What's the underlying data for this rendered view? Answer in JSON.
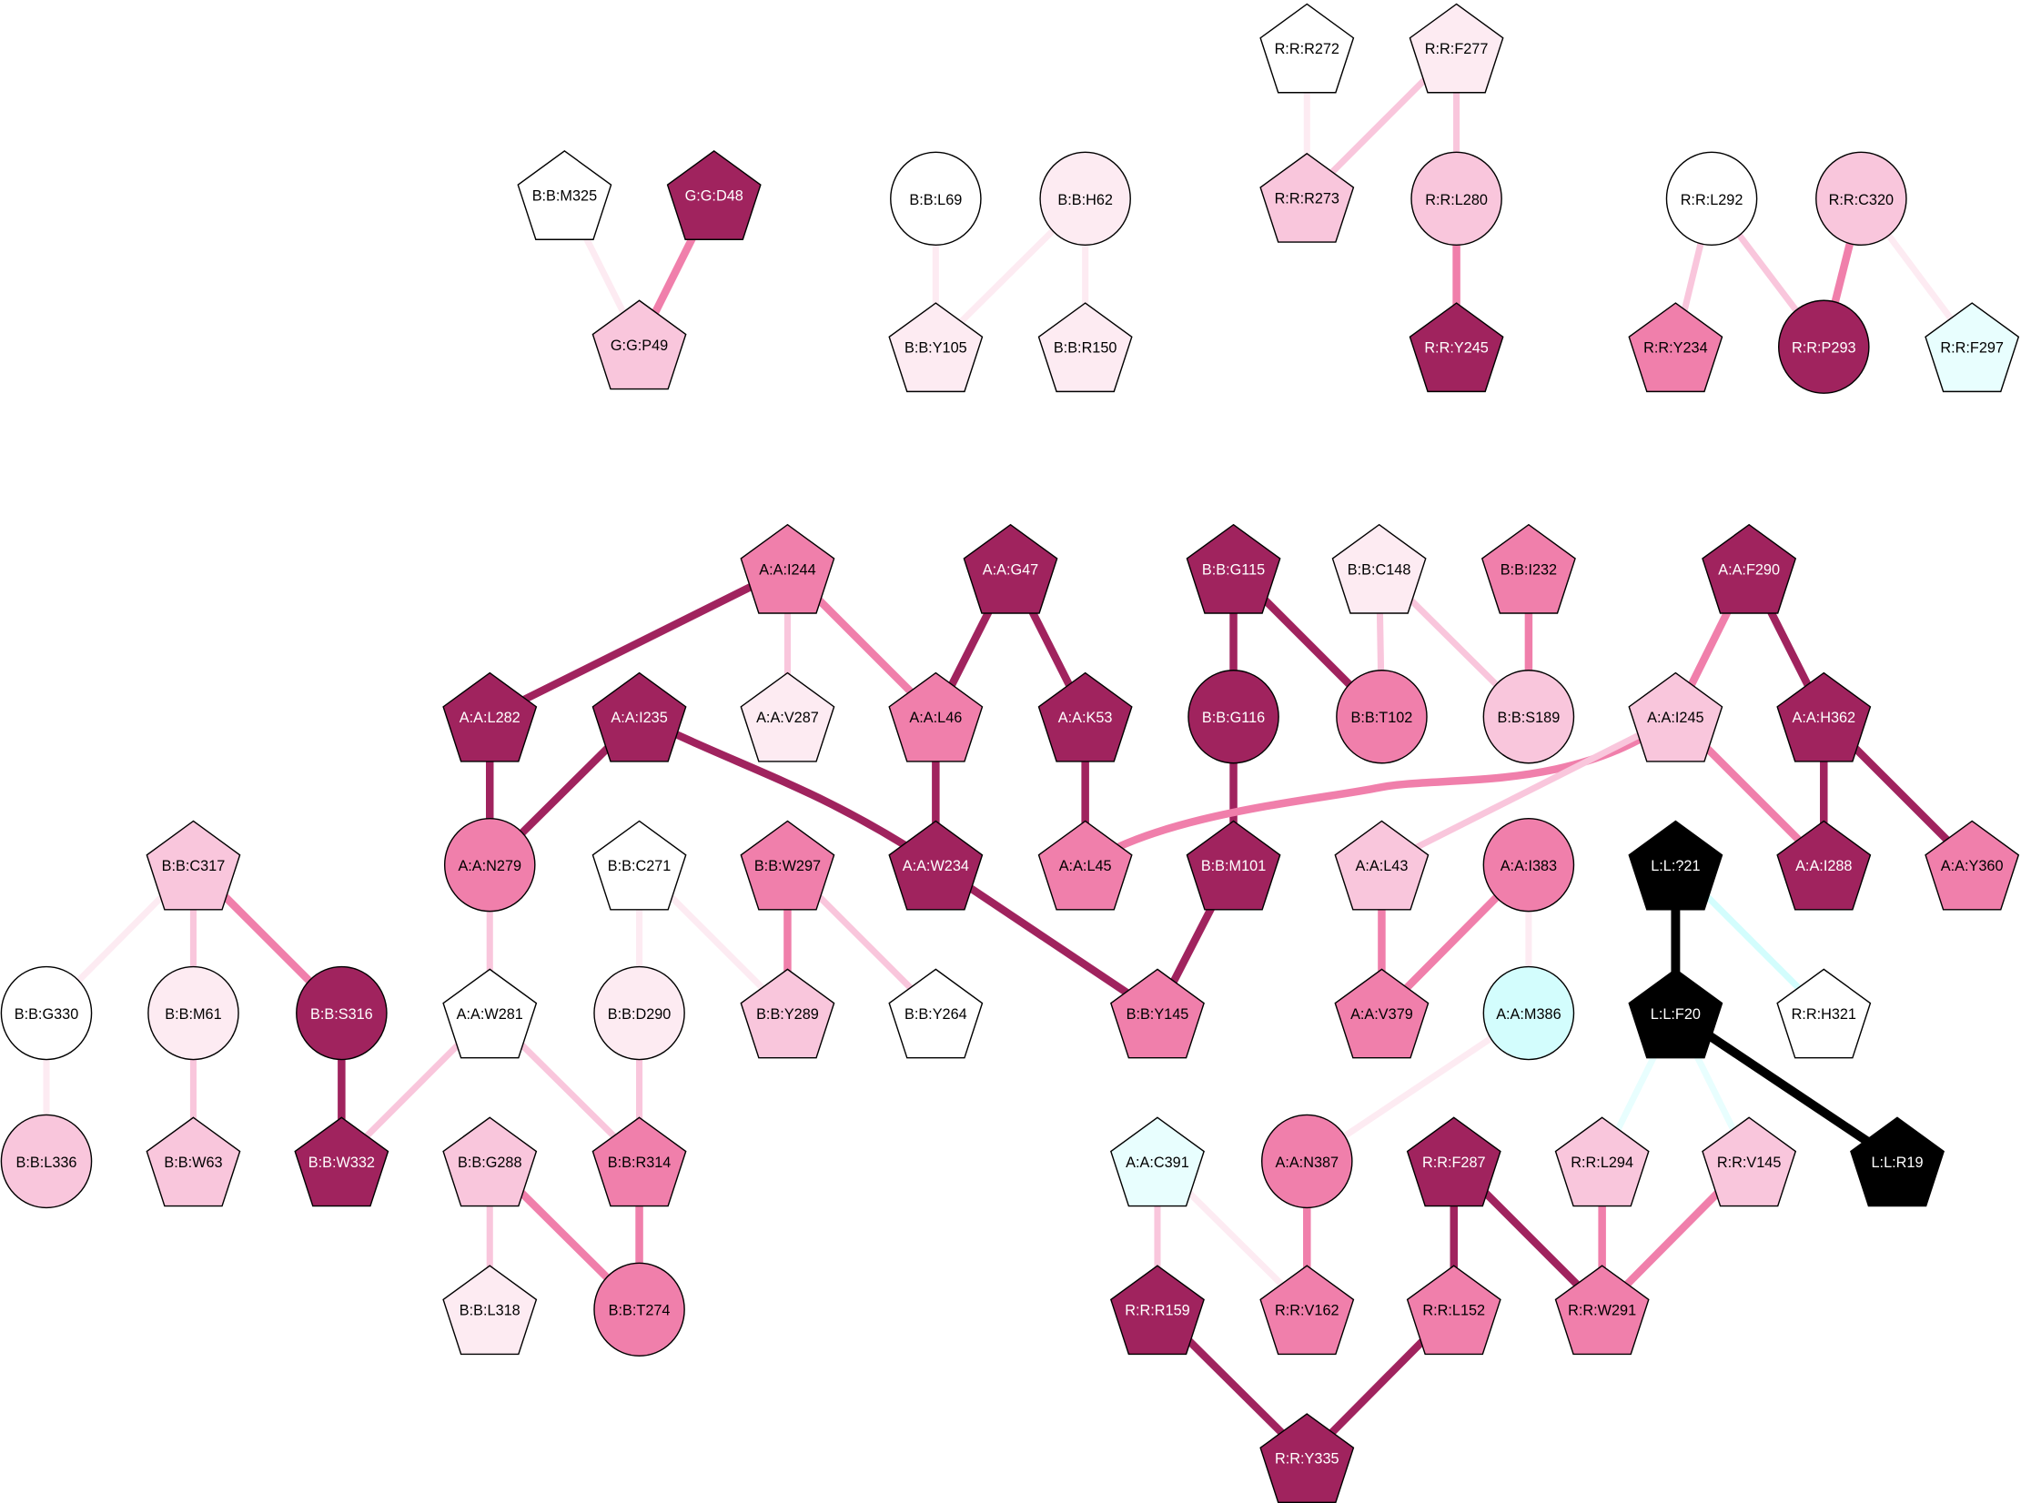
{
  "palette": {
    "white": "#ffffff",
    "pink1": "#fdebf2",
    "pink2": "#f9c6dc",
    "pink3": "#f07fab",
    "pink4": "#a0235e",
    "black": "#000000",
    "cyan1": "#e8fefe",
    "cyan2": "#d3fdfd"
  },
  "nodes": [
    {
      "label": "B:B:M325",
      "shape": "pentagon",
      "color": "white"
    },
    {
      "label": "G:G:D48",
      "shape": "pentagon",
      "color": "pink4"
    },
    {
      "label": "G:G:P49",
      "shape": "pentagon",
      "color": "pink2"
    },
    {
      "label": "B:B:L69",
      "shape": "circle",
      "color": "white"
    },
    {
      "label": "B:B:H62",
      "shape": "circle",
      "color": "pink1"
    },
    {
      "label": "B:B:Y105",
      "shape": "pentagon",
      "color": "pink1"
    },
    {
      "label": "B:B:R150",
      "shape": "pentagon",
      "color": "pink1"
    },
    {
      "label": "R:R:R272",
      "shape": "pentagon",
      "color": "white"
    },
    {
      "label": "R:R:F277",
      "shape": "pentagon",
      "color": "pink1"
    },
    {
      "label": "R:R:R273",
      "shape": "pentagon",
      "color": "pink2"
    },
    {
      "label": "R:R:L280",
      "shape": "circle",
      "color": "pink2"
    },
    {
      "label": "R:R:Y245",
      "shape": "pentagon",
      "color": "pink4"
    },
    {
      "label": "R:R:L292",
      "shape": "circle",
      "color": "white"
    },
    {
      "label": "R:R:C320",
      "shape": "circle",
      "color": "pink2"
    },
    {
      "label": "R:R:Y234",
      "shape": "pentagon",
      "color": "pink3"
    },
    {
      "label": "R:R:P293",
      "shape": "circle",
      "color": "pink4"
    },
    {
      "label": "R:R:F297",
      "shape": "pentagon",
      "color": "cyan1"
    },
    {
      "label": "A:A:I244",
      "shape": "pentagon",
      "color": "pink3"
    },
    {
      "label": "A:A:G47",
      "shape": "pentagon",
      "color": "pink4"
    },
    {
      "label": "B:B:G115",
      "shape": "pentagon",
      "color": "pink4"
    },
    {
      "label": "B:B:C148",
      "shape": "pentagon",
      "color": "pink1"
    },
    {
      "label": "B:B:I232",
      "shape": "pentagon",
      "color": "pink3"
    },
    {
      "label": "A:A:F290",
      "shape": "pentagon",
      "color": "pink4"
    },
    {
      "label": "A:A:L282",
      "shape": "pentagon",
      "color": "pink4"
    },
    {
      "label": "A:A:I235",
      "shape": "pentagon",
      "color": "pink4"
    },
    {
      "label": "A:A:V287",
      "shape": "pentagon",
      "color": "pink1"
    },
    {
      "label": "A:A:L46",
      "shape": "pentagon",
      "color": "pink3"
    },
    {
      "label": "A:A:K53",
      "shape": "pentagon",
      "color": "pink4"
    },
    {
      "label": "B:B:G116",
      "shape": "circle",
      "color": "pink4"
    },
    {
      "label": "B:B:T102",
      "shape": "circle",
      "color": "pink3"
    },
    {
      "label": "B:B:S189",
      "shape": "circle",
      "color": "pink2"
    },
    {
      "label": "A:A:I245",
      "shape": "pentagon",
      "color": "pink2"
    },
    {
      "label": "A:A:H362",
      "shape": "pentagon",
      "color": "pink4"
    },
    {
      "label": "B:B:C317",
      "shape": "pentagon",
      "color": "pink2"
    },
    {
      "label": "A:A:N279",
      "shape": "circle",
      "color": "pink3"
    },
    {
      "label": "B:B:C271",
      "shape": "pentagon",
      "color": "white"
    },
    {
      "label": "B:B:W297",
      "shape": "pentagon",
      "color": "pink3"
    },
    {
      "label": "A:A:W234",
      "shape": "pentagon",
      "color": "pink4"
    },
    {
      "label": "A:A:L45",
      "shape": "pentagon",
      "color": "pink3"
    },
    {
      "label": "B:B:M101",
      "shape": "pentagon",
      "color": "pink4"
    },
    {
      "label": "A:A:L43",
      "shape": "pentagon",
      "color": "pink2"
    },
    {
      "label": "A:A:I383",
      "shape": "circle",
      "color": "pink3"
    },
    {
      "label": "L:L:?21",
      "shape": "pentagon",
      "color": "black"
    },
    {
      "label": "A:A:I288",
      "shape": "pentagon",
      "color": "pink4"
    },
    {
      "label": "A:A:Y360",
      "shape": "pentagon",
      "color": "pink3"
    },
    {
      "label": "B:B:G330",
      "shape": "circle",
      "color": "white"
    },
    {
      "label": "B:B:M61",
      "shape": "circle",
      "color": "pink1"
    },
    {
      "label": "B:B:S316",
      "shape": "circle",
      "color": "pink4"
    },
    {
      "label": "A:A:W281",
      "shape": "pentagon",
      "color": "white"
    },
    {
      "label": "B:B:D290",
      "shape": "circle",
      "color": "pink1"
    },
    {
      "label": "B:B:Y289",
      "shape": "pentagon",
      "color": "pink2"
    },
    {
      "label": "B:B:Y264",
      "shape": "pentagon",
      "color": "white"
    },
    {
      "label": "B:B:Y145",
      "shape": "pentagon",
      "color": "pink3"
    },
    {
      "label": "A:A:V379",
      "shape": "pentagon",
      "color": "pink3"
    },
    {
      "label": "A:A:M386",
      "shape": "circle",
      "color": "cyan2"
    },
    {
      "label": "L:L:F20",
      "shape": "pentagon",
      "color": "black"
    },
    {
      "label": "R:R:H321",
      "shape": "pentagon",
      "color": "white"
    },
    {
      "label": "B:B:L336",
      "shape": "circle",
      "color": "pink2"
    },
    {
      "label": "B:B:W63",
      "shape": "pentagon",
      "color": "pink2"
    },
    {
      "label": "B:B:W332",
      "shape": "pentagon",
      "color": "pink4"
    },
    {
      "label": "B:B:G288",
      "shape": "pentagon",
      "color": "pink2"
    },
    {
      "label": "B:B:R314",
      "shape": "pentagon",
      "color": "pink3"
    },
    {
      "label": "A:A:C391",
      "shape": "pentagon",
      "color": "cyan1"
    },
    {
      "label": "A:A:N387",
      "shape": "circle",
      "color": "pink3"
    },
    {
      "label": "R:R:F287",
      "shape": "pentagon",
      "color": "pink4"
    },
    {
      "label": "R:R:L294",
      "shape": "pentagon",
      "color": "pink2"
    },
    {
      "label": "R:R:V145",
      "shape": "pentagon",
      "color": "pink2"
    },
    {
      "label": "L:L:R19",
      "shape": "pentagon",
      "color": "black"
    },
    {
      "label": "B:B:L318",
      "shape": "pentagon",
      "color": "pink1"
    },
    {
      "label": "B:B:T274",
      "shape": "circle",
      "color": "pink3"
    },
    {
      "label": "R:R:R159",
      "shape": "pentagon",
      "color": "pink4"
    },
    {
      "label": "R:R:V162",
      "shape": "pentagon",
      "color": "pink3"
    },
    {
      "label": "R:R:L152",
      "shape": "pentagon",
      "color": "pink3"
    },
    {
      "label": "R:R:W291",
      "shape": "pentagon",
      "color": "pink3"
    },
    {
      "label": "R:R:Y335",
      "shape": "pentagon",
      "color": "pink4"
    }
  ],
  "edges": [
    [
      "B:B:M325",
      "G:G:P49",
      "pink1"
    ],
    [
      "G:G:D48",
      "G:G:P49",
      "pink3"
    ],
    [
      "B:B:L69",
      "B:B:Y105",
      "pink1"
    ],
    [
      "B:B:H62",
      "B:B:Y105",
      "pink1"
    ],
    [
      "B:B:H62",
      "B:B:R150",
      "pink1"
    ],
    [
      "R:R:R272",
      "R:R:R273",
      "pink1"
    ],
    [
      "R:R:F277",
      "R:R:R273",
      "pink2"
    ],
    [
      "R:R:F277",
      "R:R:L280",
      "pink2"
    ],
    [
      "R:R:L280",
      "R:R:Y245",
      "pink3"
    ],
    [
      "R:R:L292",
      "R:R:Y234",
      "pink2"
    ],
    [
      "R:R:L292",
      "R:R:P293",
      "pink2"
    ],
    [
      "R:R:C320",
      "R:R:P293",
      "pink3"
    ],
    [
      "R:R:C320",
      "R:R:F297",
      "pink1"
    ],
    [
      "A:A:I244",
      "A:A:L282",
      "pink4"
    ],
    [
      "A:A:I244",
      "A:A:V287",
      "pink2"
    ],
    [
      "A:A:I244",
      "A:A:L46",
      "pink3"
    ],
    [
      "A:A:G47",
      "A:A:L46",
      "pink4"
    ],
    [
      "A:A:G47",
      "A:A:K53",
      "pink4"
    ],
    [
      "B:B:G115",
      "B:B:G116",
      "pink4"
    ],
    [
      "B:B:G115",
      "B:B:T102",
      "pink4"
    ],
    [
      "B:B:C148",
      "B:B:T102",
      "pink2"
    ],
    [
      "B:B:C148",
      "B:B:S189",
      "pink2"
    ],
    [
      "B:B:I232",
      "B:B:S189",
      "pink3"
    ],
    [
      "A:A:F290",
      "A:A:I245",
      "pink3"
    ],
    [
      "A:A:F290",
      "A:A:H362",
      "pink4"
    ],
    [
      "A:A:L282",
      "A:A:N279",
      "pink4"
    ],
    [
      "A:A:I235",
      "A:A:N279",
      "pink4"
    ],
    [
      "A:A:I235",
      "A:A:W234",
      "pink4"
    ],
    [
      "A:A:L46",
      "A:A:W234",
      "pink4"
    ],
    [
      "A:A:K53",
      "A:A:L45",
      "pink4"
    ],
    [
      "B:B:G116",
      "B:B:M101",
      "pink4"
    ],
    [
      "A:A:I245",
      "A:A:L45",
      "pink3"
    ],
    [
      "A:A:I245",
      "A:A:L43",
      "pink2"
    ],
    [
      "A:A:I245",
      "A:A:I288",
      "pink3"
    ],
    [
      "A:A:H362",
      "A:A:I288",
      "pink4"
    ],
    [
      "A:A:H362",
      "A:A:Y360",
      "pink4"
    ],
    [
      "B:B:C317",
      "B:B:G330",
      "pink1"
    ],
    [
      "B:B:C317",
      "B:B:M61",
      "pink2"
    ],
    [
      "B:B:C317",
      "B:B:S316",
      "pink3"
    ],
    [
      "A:A:N279",
      "A:A:W281",
      "pink2"
    ],
    [
      "B:B:C271",
      "B:B:D290",
      "pink1"
    ],
    [
      "B:B:C271",
      "B:B:Y289",
      "pink1"
    ],
    [
      "B:B:W297",
      "B:B:Y289",
      "pink3"
    ],
    [
      "B:B:W297",
      "B:B:Y264",
      "pink2"
    ],
    [
      "A:A:W234",
      "B:B:Y145",
      "pink4"
    ],
    [
      "B:B:M101",
      "B:B:Y145",
      "pink4"
    ],
    [
      "A:A:L43",
      "A:A:V379",
      "pink3"
    ],
    [
      "A:A:I383",
      "A:A:V379",
      "pink3"
    ],
    [
      "A:A:I383",
      "A:A:M386",
      "pink1"
    ],
    [
      "L:L:?21",
      "L:L:F20",
      "black"
    ],
    [
      "L:L:?21",
      "R:R:H321",
      "cyan2"
    ],
    [
      "B:B:G330",
      "B:B:L336",
      "pink1"
    ],
    [
      "B:B:M61",
      "B:B:W63",
      "pink2"
    ],
    [
      "B:B:S316",
      "B:B:W332",
      "pink4"
    ],
    [
      "A:A:W281",
      "B:B:W332",
      "pink2"
    ],
    [
      "A:A:W281",
      "B:B:R314",
      "pink2"
    ],
    [
      "B:B:D290",
      "B:B:R314",
      "pink2"
    ],
    [
      "A:A:M386",
      "A:A:N387",
      "pink1"
    ],
    [
      "L:L:F20",
      "R:R:L294",
      "cyan1"
    ],
    [
      "L:L:F20",
      "R:R:V145",
      "cyan1"
    ],
    [
      "L:L:F20",
      "L:L:R19",
      "black"
    ],
    [
      "B:B:G288",
      "B:B:L318",
      "pink2"
    ],
    [
      "B:B:G288",
      "B:B:T274",
      "pink3"
    ],
    [
      "B:B:R314",
      "B:B:T274",
      "pink3"
    ],
    [
      "A:A:C391",
      "R:R:R159",
      "pink2"
    ],
    [
      "A:A:C391",
      "R:R:V162",
      "pink1"
    ],
    [
      "A:A:N387",
      "R:R:V162",
      "pink3"
    ],
    [
      "R:R:F287",
      "R:R:L152",
      "pink4"
    ],
    [
      "R:R:F287",
      "R:R:W291",
      "pink4"
    ],
    [
      "R:R:L294",
      "R:R:W291",
      "pink3"
    ],
    [
      "R:R:V145",
      "R:R:W291",
      "pink3"
    ],
    [
      "R:R:R159",
      "R:R:Y335",
      "pink4"
    ],
    [
      "R:R:L152",
      "R:R:Y335",
      "pink4"
    ]
  ]
}
